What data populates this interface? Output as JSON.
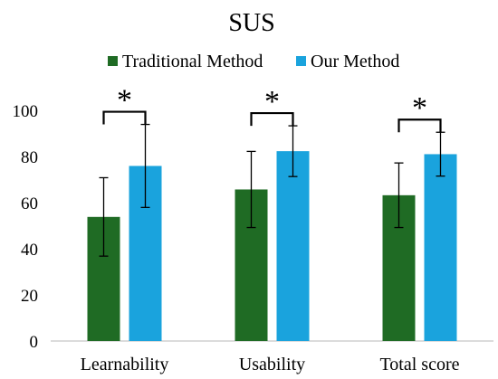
{
  "chart_data": {
    "type": "bar",
    "title": "SUS",
    "categories": [
      "Learnability",
      "Usability",
      "Total score"
    ],
    "series": [
      {
        "name": "Traditional Method",
        "color": "#1F6B24",
        "values": [
          53.8,
          65.7,
          63.2
        ],
        "error": [
          17,
          16.5,
          14
        ]
      },
      {
        "name": "Our Method",
        "color": "#1AA3DD",
        "values": [
          75.9,
          82.3,
          81.0
        ],
        "error": [
          18,
          11,
          9.5
        ]
      }
    ],
    "xlabel": "",
    "ylabel": "",
    "ylim": [
      0,
      100
    ],
    "yticks": [
      0,
      20,
      40,
      60,
      80,
      100
    ],
    "grid": false,
    "legend_position": "top-center",
    "significance": [
      "*",
      "*",
      "*"
    ]
  }
}
